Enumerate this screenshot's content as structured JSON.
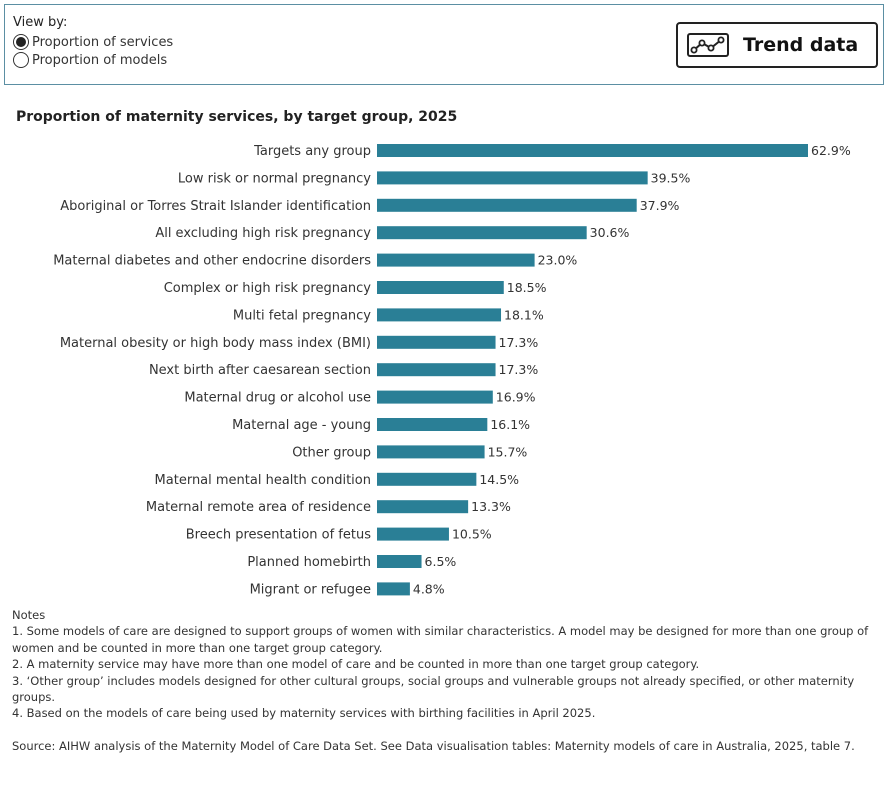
{
  "view_by": {
    "label": "View by:",
    "options": [
      {
        "label": "Proportion of services",
        "selected": true
      },
      {
        "label": "Proportion of models",
        "selected": false
      }
    ]
  },
  "trend_button": {
    "label": "Trend data",
    "icon": "trend-line-icon"
  },
  "colors": {
    "bar": "#2a7f96",
    "panel_border": "#5b8fa3"
  },
  "chart_data": {
    "type": "bar",
    "orientation": "horizontal",
    "title": "Proportion of maternity services, by target group, 2025",
    "categories": [
      "Targets any group",
      "Low risk or normal pregnancy",
      "Aboriginal or Torres Strait Islander identification",
      "All excluding high risk pregnancy",
      "Maternal diabetes and other endocrine disorders",
      "Complex or high risk pregnancy",
      "Multi fetal pregnancy",
      "Maternal obesity or high body mass index (BMI)",
      "Next birth after caesarean section",
      "Maternal drug or alcohol use",
      "Maternal age - young",
      "Other group",
      "Maternal mental health condition",
      "Maternal remote area of residence",
      "Breech presentation of fetus",
      "Planned homebirth",
      "Migrant or refugee"
    ],
    "values": [
      62.9,
      39.5,
      37.9,
      30.6,
      23.0,
      18.5,
      18.1,
      17.3,
      17.3,
      16.9,
      16.1,
      15.7,
      14.5,
      13.3,
      10.5,
      6.5,
      4.8
    ],
    "value_labels": [
      "62.9%",
      "39.5%",
      "37.9%",
      "30.6%",
      "23.0%",
      "18.5%",
      "18.1%",
      "17.3%",
      "17.3%",
      "16.9%",
      "16.1%",
      "15.7%",
      "14.5%",
      "13.3%",
      "10.5%",
      "6.5%",
      "4.8%"
    ],
    "xlim": [
      0,
      68
    ],
    "grid": false
  },
  "notes": {
    "heading": "Notes",
    "items": [
      "1. Some models of care are designed to support groups of women with similar characteristics. A model may be designed for more than one group of women and be counted in more than one target group category.",
      "2. A maternity service may have more than one model of care and be counted in more than one target group category.",
      "3. ‘Other group’ includes models designed for other cultural groups, social groups and vulnerable groups not already specified, or other maternity groups.",
      "4. Based on the models of care being used by maternity services with birthing facilities in April 2025."
    ],
    "source": "Source: AIHW analysis of the Maternity Model of Care Data Set. See Data visualisation tables: Maternity models of care in Australia, 2025, table 7."
  }
}
